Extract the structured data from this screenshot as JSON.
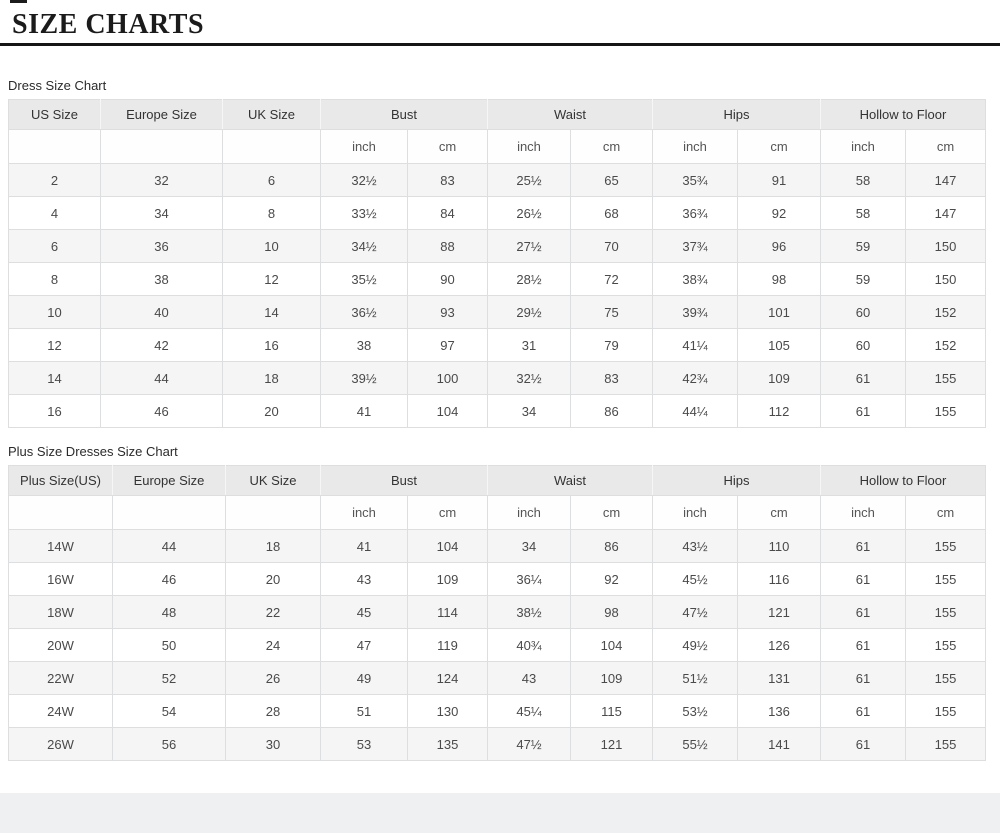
{
  "header": {
    "title": "SIZE CHARTS"
  },
  "tables": [
    {
      "label": "Dress Size Chart",
      "group_headers": [
        {
          "label": "US Size",
          "span": 1
        },
        {
          "label": "Europe Size",
          "span": 1
        },
        {
          "label": "UK Size",
          "span": 1
        },
        {
          "label": "Bust",
          "span": 2
        },
        {
          "label": "Waist",
          "span": 2
        },
        {
          "label": "Hips",
          "span": 2
        },
        {
          "label": "Hollow to Floor",
          "span": 2
        }
      ],
      "unit_cells": [
        "",
        "",
        "",
        "inch",
        "cm",
        "inch",
        "cm",
        "inch",
        "cm",
        "inch",
        "cm"
      ],
      "rows": [
        [
          "2",
          "32",
          "6",
          "32½",
          "83",
          "25½",
          "65",
          "35¾",
          "91",
          "58",
          "147"
        ],
        [
          "4",
          "34",
          "8",
          "33½",
          "84",
          "26½",
          "68",
          "36¾",
          "92",
          "58",
          "147"
        ],
        [
          "6",
          "36",
          "10",
          "34½",
          "88",
          "27½",
          "70",
          "37¾",
          "96",
          "59",
          "150"
        ],
        [
          "8",
          "38",
          "12",
          "35½",
          "90",
          "28½",
          "72",
          "38¾",
          "98",
          "59",
          "150"
        ],
        [
          "10",
          "40",
          "14",
          "36½",
          "93",
          "29½",
          "75",
          "39¾",
          "101",
          "60",
          "152"
        ],
        [
          "12",
          "42",
          "16",
          "38",
          "97",
          "31",
          "79",
          "41¼",
          "105",
          "60",
          "152"
        ],
        [
          "14",
          "44",
          "18",
          "39½",
          "100",
          "32½",
          "83",
          "42¾",
          "109",
          "61",
          "155"
        ],
        [
          "16",
          "46",
          "20",
          "41",
          "104",
          "34",
          "86",
          "44¼",
          "112",
          "61",
          "155"
        ]
      ]
    },
    {
      "label": "Plus Size Dresses Size Chart",
      "group_headers": [
        {
          "label": "Plus Size(US)",
          "span": 1
        },
        {
          "label": "Europe Size",
          "span": 1
        },
        {
          "label": "UK Size",
          "span": 1
        },
        {
          "label": "Bust",
          "span": 2
        },
        {
          "label": "Waist",
          "span": 2
        },
        {
          "label": "Hips",
          "span": 2
        },
        {
          "label": "Hollow to Floor",
          "span": 2
        }
      ],
      "unit_cells": [
        "",
        "",
        "",
        "inch",
        "cm",
        "inch",
        "cm",
        "inch",
        "cm",
        "inch",
        "cm"
      ],
      "rows": [
        [
          "14W",
          "44",
          "18",
          "41",
          "104",
          "34",
          "86",
          "43½",
          "110",
          "61",
          "155"
        ],
        [
          "16W",
          "46",
          "20",
          "43",
          "109",
          "36¼",
          "92",
          "45½",
          "116",
          "61",
          "155"
        ],
        [
          "18W",
          "48",
          "22",
          "45",
          "114",
          "38½",
          "98",
          "47½",
          "121",
          "61",
          "155"
        ],
        [
          "20W",
          "50",
          "24",
          "47",
          "119",
          "40¾",
          "104",
          "49½",
          "126",
          "61",
          "155"
        ],
        [
          "22W",
          "52",
          "26",
          "49",
          "124",
          "43",
          "109",
          "51½",
          "131",
          "61",
          "155"
        ],
        [
          "24W",
          "54",
          "28",
          "51",
          "130",
          "45¼",
          "115",
          "53½",
          "136",
          "61",
          "155"
        ],
        [
          "26W",
          "56",
          "30",
          "53",
          "135",
          "47½",
          "121",
          "55½",
          "141",
          "61",
          "155"
        ]
      ]
    }
  ],
  "colors": {
    "header_bg": "#e9e9e9",
    "row_alt_bg": "#f5f5f5",
    "border": "#dcdedf",
    "title_rule": "#161616",
    "footer_bg": "#eef0f1"
  }
}
